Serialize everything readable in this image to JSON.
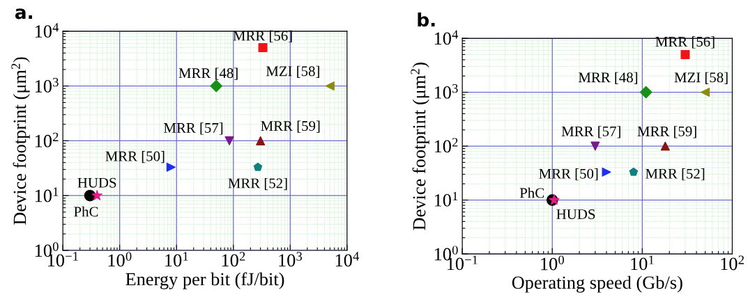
{
  "chart_data": [
    {
      "type": "scatter",
      "title": "a.",
      "xlabel": "Energy per bit (fJ/bit)",
      "ylabel": "Device footprint (μm$^{2}$)",
      "log": "xy",
      "grid": true,
      "xlim": [
        0.1,
        10000
      ],
      "xticks": [
        {
          "value": 0.1,
          "label": "10$^{−1}$"
        },
        {
          "value": 0.2,
          "label": null
        },
        {
          "value": 0.3,
          "label": null
        },
        {
          "value": 0.4,
          "label": null
        },
        {
          "value": 0.5,
          "label": null
        },
        {
          "value": 0.6,
          "label": null
        },
        {
          "value": 0.7,
          "label": null
        },
        {
          "value": 0.8,
          "label": null
        },
        {
          "value": 0.9,
          "label": null
        },
        {
          "value": 1,
          "label": "10$^{0}$"
        },
        {
          "value": 2,
          "label": null
        },
        {
          "value": 3,
          "label": null
        },
        {
          "value": 4,
          "label": null
        },
        {
          "value": 5,
          "label": null
        },
        {
          "value": 6,
          "label": null
        },
        {
          "value": 7,
          "label": null
        },
        {
          "value": 8,
          "label": null
        },
        {
          "value": 9,
          "label": null
        },
        {
          "value": 10,
          "label": "10$^{1}$"
        },
        {
          "value": 20,
          "label": null
        },
        {
          "value": 30,
          "label": null
        },
        {
          "value": 40,
          "label": null
        },
        {
          "value": 50,
          "label": null
        },
        {
          "value": 60,
          "label": null
        },
        {
          "value": 70,
          "label": null
        },
        {
          "value": 80,
          "label": null
        },
        {
          "value": 90,
          "label": null
        },
        {
          "value": 100,
          "label": "10$^{2}$"
        },
        {
          "value": 200,
          "label": null
        },
        {
          "value": 300,
          "label": null
        },
        {
          "value": 400,
          "label": null
        },
        {
          "value": 500,
          "label": null
        },
        {
          "value": 600,
          "label": null
        },
        {
          "value": 700,
          "label": null
        },
        {
          "value": 800,
          "label": null
        },
        {
          "value": 900,
          "label": null
        },
        {
          "value": 1000,
          "label": "10$^{3}$"
        },
        {
          "value": 2000,
          "label": null
        },
        {
          "value": 3000,
          "label": null
        },
        {
          "value": 4000,
          "label": null
        },
        {
          "value": 5000,
          "label": null
        },
        {
          "value": 6000,
          "label": null
        },
        {
          "value": 7000,
          "label": null
        },
        {
          "value": 8000,
          "label": null
        },
        {
          "value": 9000,
          "label": null
        },
        {
          "value": 10000,
          "label": "10$^{4}$"
        }
      ],
      "ylim": [
        1,
        10000
      ],
      "yticks": [
        {
          "value": 1,
          "label": "10$^{0}$"
        },
        {
          "value": 2,
          "label": null
        },
        {
          "value": 3,
          "label": null
        },
        {
          "value": 4,
          "label": null
        },
        {
          "value": 5,
          "label": null
        },
        {
          "value": 6,
          "label": null
        },
        {
          "value": 7,
          "label": null
        },
        {
          "value": 8,
          "label": null
        },
        {
          "value": 9,
          "label": null
        },
        {
          "value": 10,
          "label": "10$^{1}$"
        },
        {
          "value": 20,
          "label": null
        },
        {
          "value": 30,
          "label": null
        },
        {
          "value": 40,
          "label": null
        },
        {
          "value": 50,
          "label": null
        },
        {
          "value": 60,
          "label": null
        },
        {
          "value": 70,
          "label": null
        },
        {
          "value": 80,
          "label": null
        },
        {
          "value": 90,
          "label": null
        },
        {
          "value": 100,
          "label": "10$^{2}$"
        },
        {
          "value": 200,
          "label": null
        },
        {
          "value": 300,
          "label": null
        },
        {
          "value": 400,
          "label": null
        },
        {
          "value": 500,
          "label": null
        },
        {
          "value": 600,
          "label": null
        },
        {
          "value": 700,
          "label": null
        },
        {
          "value": 800,
          "label": null
        },
        {
          "value": 900,
          "label": null
        },
        {
          "value": 1000,
          "label": "10$^{3}$"
        },
        {
          "value": 2000,
          "label": null
        },
        {
          "value": 3000,
          "label": null
        },
        {
          "value": 4000,
          "label": null
        },
        {
          "value": 5000,
          "label": null
        },
        {
          "value": 6000,
          "label": null
        },
        {
          "value": 7000,
          "label": null
        },
        {
          "value": 8000,
          "label": null
        },
        {
          "value": 9000,
          "label": null
        },
        {
          "value": 10000,
          "label": "10$^{4}$"
        }
      ],
      "series": [
        {
          "name": "PhC",
          "color": "#000000",
          "marker": "circle",
          "x": [
            0.3
          ],
          "values": [
            10
          ]
        },
        {
          "name": "HUDS",
          "color": "#e8198b",
          "marker": "star",
          "x": [
            0.4
          ],
          "values": [
            10
          ]
        },
        {
          "name": "MRR [50]",
          "color": "#1f2fef",
          "marker": "triangle-right",
          "x": [
            8
          ],
          "values": [
            33
          ]
        },
        {
          "name": "MRR [48]",
          "color": "#199119",
          "marker": "diamond",
          "x": [
            50
          ],
          "values": [
            1000
          ]
        },
        {
          "name": "MRR [56]",
          "color": "#f01414",
          "marker": "square",
          "x": [
            330
          ],
          "values": [
            5000
          ]
        },
        {
          "name": "MZI [58]",
          "color": "#8a8a14",
          "marker": "triangle-left",
          "x": [
            5000
          ],
          "values": [
            1000
          ]
        },
        {
          "name": "MRR [57]",
          "color": "#7a1a8a",
          "marker": "triangle-down",
          "x": [
            85
          ],
          "values": [
            100
          ]
        },
        {
          "name": "MRR [59]",
          "color": "#8a1414",
          "marker": "triangle",
          "x": [
            300
          ],
          "values": [
            100
          ]
        },
        {
          "name": "MRR [52]",
          "color": "#0f7f7f",
          "x": [
            270
          ],
          "values": [
            33
          ]
        }
      ]
    },
    {
      "type": "scatter",
      "title": "b.",
      "xlabel": "Operating speed (Gb/s)",
      "ylabel": "Device footprint (μm$^{2}$)",
      "log": "xy",
      "grid": true,
      "xlim": [
        0.1,
        100
      ],
      "xticks": [
        {
          "value": 0.1,
          "label": "10$^{−1}$"
        },
        {
          "value": 0.2,
          "label": null
        },
        {
          "value": 0.3,
          "label": null
        },
        {
          "value": 0.4,
          "label": null
        },
        {
          "value": 0.5,
          "label": null
        },
        {
          "value": 0.6,
          "label": null
        },
        {
          "value": 0.7,
          "label": null
        },
        {
          "value": 0.8,
          "label": null
        },
        {
          "value": 0.9,
          "label": null
        },
        {
          "value": 1,
          "label": "10$^{0}$"
        },
        {
          "value": 2,
          "label": null
        },
        {
          "value": 3,
          "label": null
        },
        {
          "value": 4,
          "label": null
        },
        {
          "value": 5,
          "label": null
        },
        {
          "value": 6,
          "label": null
        },
        {
          "value": 7,
          "label": null
        },
        {
          "value": 8,
          "label": null
        },
        {
          "value": 9,
          "label": null
        },
        {
          "value": 10,
          "label": "10$^{1}$"
        },
        {
          "value": 20,
          "label": null
        },
        {
          "value": 30,
          "label": null
        },
        {
          "value": 40,
          "label": null
        },
        {
          "value": 50,
          "label": null
        },
        {
          "value": 60,
          "label": null
        },
        {
          "value": 70,
          "label": null
        },
        {
          "value": 80,
          "label": null
        },
        {
          "value": 90,
          "label": null
        },
        {
          "value": 100,
          "label": "10$^{2}$"
        }
      ],
      "ylim": [
        1,
        10000
      ],
      "yticks": [
        {
          "value": 1,
          "label": "10$^{0}$"
        },
        {
          "value": 2,
          "label": null
        },
        {
          "value": 3,
          "label": null
        },
        {
          "value": 4,
          "label": null
        },
        {
          "value": 5,
          "label": null
        },
        {
          "value": 6,
          "label": null
        },
        {
          "value": 7,
          "label": null
        },
        {
          "value": 8,
          "label": null
        },
        {
          "value": 9,
          "label": null
        },
        {
          "value": 10,
          "label": "10$^{1}$"
        },
        {
          "value": 20,
          "label": null
        },
        {
          "value": 30,
          "label": null
        },
        {
          "value": 40,
          "label": null
        },
        {
          "value": 50,
          "label": null
        },
        {
          "value": 60,
          "label": null
        },
        {
          "value": 70,
          "label": null
        },
        {
          "value": 80,
          "label": null
        },
        {
          "value": 90,
          "label": null
        },
        {
          "value": 100,
          "label": "10$^{2}$"
        },
        {
          "value": 200,
          "label": null
        },
        {
          "value": 300,
          "label": null
        },
        {
          "value": 400,
          "label": null
        },
        {
          "value": 500,
          "label": null
        },
        {
          "value": 600,
          "label": null
        },
        {
          "value": 700,
          "label": null
        },
        {
          "value": 800,
          "label": null
        },
        {
          "value": 900,
          "label": null
        },
        {
          "value": 1000,
          "label": "10$^{3}$"
        },
        {
          "value": 2000,
          "label": null
        },
        {
          "value": 3000,
          "label": null
        },
        {
          "value": 4000,
          "label": null
        },
        {
          "value": 5000,
          "label": null
        },
        {
          "value": 6000,
          "label": null
        },
        {
          "value": 7000,
          "label": null
        },
        {
          "value": 8000,
          "label": null
        },
        {
          "value": 9000,
          "label": null
        },
        {
          "value": 10000,
          "label": "10$^{4}$"
        }
      ],
      "series": [
        {
          "name": "PhC",
          "color": "#000000",
          "marker": "circle",
          "x": [
            1
          ],
          "values": [
            10
          ]
        },
        {
          "name": "HUDS",
          "color": "#e8198b",
          "marker": "star",
          "x": [
            1.05
          ],
          "values": [
            10
          ]
        },
        {
          "name": "MRR [50]",
          "color": "#1f2fef",
          "marker": "triangle-right",
          "x": [
            4
          ],
          "values": [
            33
          ]
        },
        {
          "name": "MRR [48]",
          "color": "#199119",
          "marker": "diamond",
          "x": [
            11
          ],
          "values": [
            1000
          ]
        },
        {
          "name": "MRR [56]",
          "color": "#f01414",
          "marker": "square",
          "x": [
            30
          ],
          "values": [
            5000
          ]
        },
        {
          "name": "MZI [58]",
          "color": "#8a8a14",
          "marker": "triangle-left",
          "x": [
            50
          ],
          "values": [
            1000
          ]
        },
        {
          "name": "MRR [57]",
          "color": "#7a1a8a",
          "marker": "triangle-down",
          "x": [
            3
          ],
          "values": [
            100
          ]
        },
        {
          "name": "MRR [59]",
          "color": "#8a1414",
          "marker": "triangle",
          "x": [
            18
          ],
          "values": [
            100
          ]
        },
        {
          "name": "MRR [52]",
          "color": "#0f7f7f",
          "x": [
            8
          ],
          "values": [
            33
          ]
        }
      ]
    }
  ]
}
